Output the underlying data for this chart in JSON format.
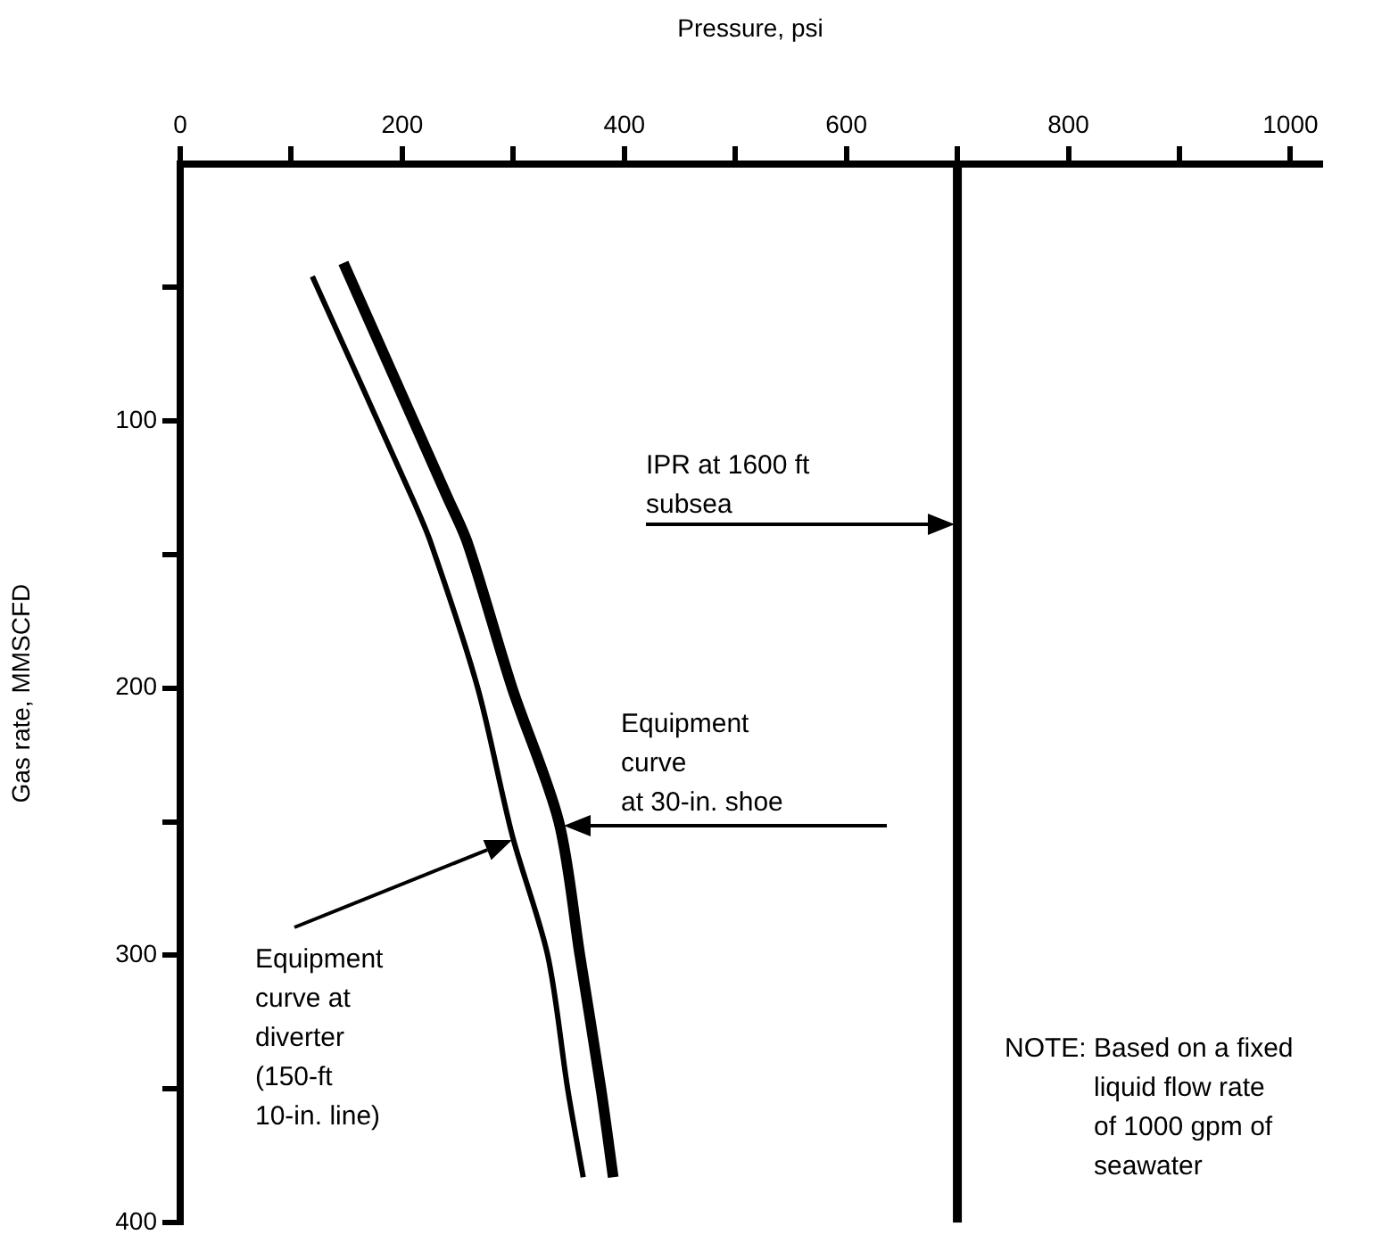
{
  "chart_data": {
    "type": "line",
    "xlabel": "Pressure, psi",
    "ylabel": "Gas rate, MMSCFD",
    "xlim": [
      0,
      1027
    ],
    "ylim": [
      400,
      4
    ],
    "xticks": [
      0,
      {
        "value": 100,
        "label": null
      },
      200,
      {
        "value": 300,
        "label": null
      },
      400,
      {
        "value": 500,
        "label": null
      },
      600,
      {
        "value": 700,
        "label": null
      },
      800,
      {
        "value": 900,
        "label": null
      },
      1000
    ],
    "yticks": [
      {
        "value": 50,
        "label": null
      },
      100,
      {
        "value": 150,
        "label": null
      },
      200,
      {
        "value": 250,
        "label": null
      },
      300,
      {
        "value": 350,
        "label": null
      },
      400
    ],
    "series": [
      {
        "color": "#000000",
        "x": [
          147,
          240,
          259,
          299,
          341,
          360,
          379,
          390
        ],
        "values": [
          41,
          128,
          146,
          200,
          250,
          300,
          350,
          383
        ]
      },
      {
        "color": "#000000",
        "x": [
          119,
          208,
          226,
          268,
          299,
          331,
          349,
          363
        ],
        "values": [
          46,
          128,
          146,
          200,
          255,
          300,
          350,
          383
        ]
      },
      {
        "color": "#000000",
        "x": [
          700,
          700
        ],
        "values": [
          4,
          400
        ]
      }
    ],
    "annotations": [
      "IPR at 1600 ft\nsubsea",
      "Equipment\ncurve\nat 30-in. shoe",
      "Equipment\ncurve at\ndiverter\n(150-ft\n10-in. line)",
      "NOTE: Based on a fixed\nliquid flow rate\nof 1000 gpm of\nseawater"
    ],
    "grid": false,
    "legend": false,
    "marker": "none",
    "line_style": "solid"
  }
}
